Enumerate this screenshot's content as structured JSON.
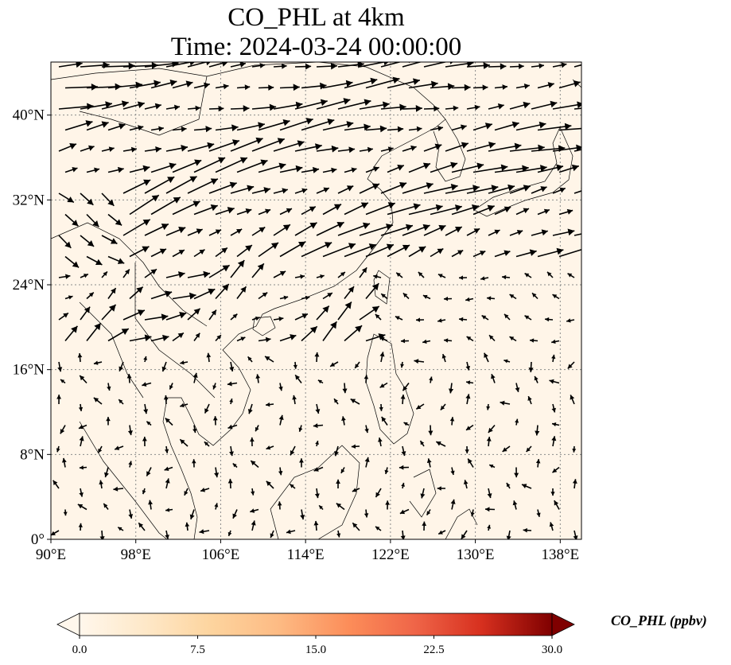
{
  "title_line1": "CO_PHL at 4km",
  "title_line2": "Time: 2024-03-24 00:00:00",
  "map": {
    "lon_range": [
      90,
      140
    ],
    "lat_range": [
      0,
      45
    ],
    "lon_ticks": [
      "90°E",
      "98°E",
      "106°E",
      "114°E",
      "122°E",
      "130°E",
      "138°E"
    ],
    "lat_ticks": [
      "0°",
      "8°N",
      "16°N",
      "24°N",
      "32°N",
      "40°N"
    ],
    "gridlines": true,
    "background_color": "#fff5e8",
    "coastline_color": "#000000",
    "gridline_color": "#808080"
  },
  "colorbar": {
    "label": "CO_PHL (ppbv)",
    "ticks": [
      "0.0",
      "7.5",
      "15.0",
      "22.5",
      "30.0"
    ],
    "range": [
      0,
      30
    ],
    "colormap": "OrRd",
    "extend": "both"
  }
}
